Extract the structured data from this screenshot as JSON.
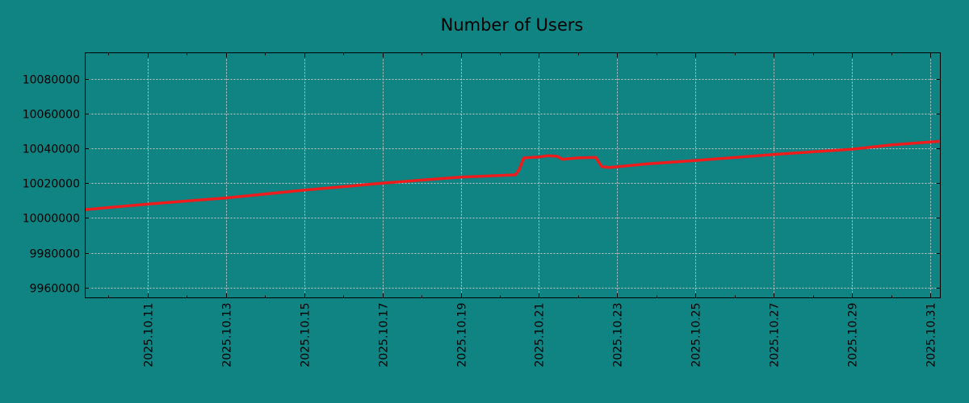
{
  "chart_data": {
    "type": "line",
    "title": "Number of Users",
    "xlabel": "",
    "ylabel": "",
    "x_unit": "day of month, October 2025",
    "xlim": [
      9.41,
      31.25
    ],
    "ylim": [
      9954200,
      10094800
    ],
    "grid": true,
    "yticks": [
      9960000,
      9980000,
      10000000,
      10020000,
      10040000,
      10060000,
      10080000
    ],
    "ytick_labels": [
      "9960000",
      "9980000",
      "10000000",
      "10020000",
      "10040000",
      "10060000",
      "10080000"
    ],
    "xticks": [
      11,
      13,
      15,
      17,
      19,
      21,
      23,
      25,
      27,
      29,
      31
    ],
    "xtick_labels": [
      "2025.10.11",
      "2025.10.13",
      "2025.10.15",
      "2025.10.17",
      "2025.10.19",
      "2025.10.21",
      "2025.10.23",
      "2025.10.25",
      "2025.10.27",
      "2025.10.29",
      "2025.10.31"
    ],
    "series": [
      {
        "name": "Number of Users",
        "color": "#ee1c1c",
        "x": [
          9.41,
          11,
          13,
          15,
          17,
          19,
          20.4,
          20.5,
          20.61,
          21.0,
          21.2,
          21.45,
          21.6,
          22.0,
          22.45,
          22.6,
          22.8,
          23.74,
          25,
          27,
          29,
          30,
          31.25
        ],
        "y": [
          10004800,
          10008000,
          10011500,
          10016000,
          10020000,
          10023500,
          10024800,
          10028000,
          10034500,
          10035000,
          10035700,
          10035500,
          10033700,
          10034500,
          10034800,
          10029500,
          10029000,
          10031000,
          10033000,
          10036500,
          10039500,
          10042000,
          10044000
        ]
      }
    ]
  },
  "colors": {
    "background": "#108383",
    "grid": "#c8c8c8",
    "line": "#ee1c1c"
  }
}
